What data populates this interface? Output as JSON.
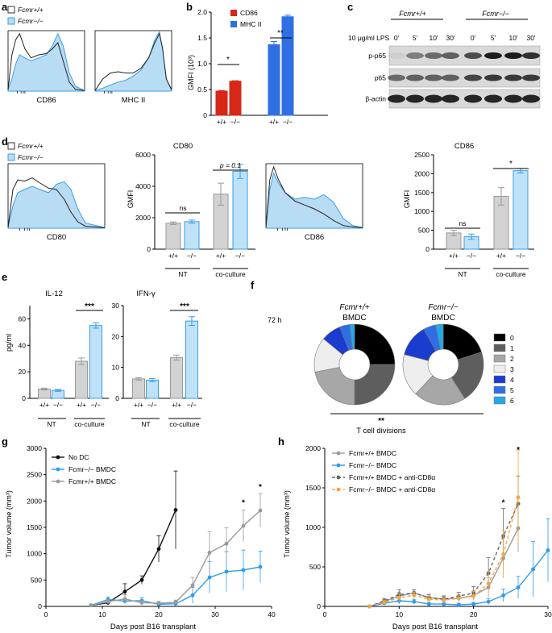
{
  "colors": {
    "wt_line": "#222222",
    "ko_line": "#3a9ee6",
    "ko_fill": "#b9dcf5",
    "red": "#d62718",
    "blue": "#2f6fe3",
    "grey_bar": "#d2d2d2",
    "ko_bar": "#bfe2f9",
    "orange": "#f4a640",
    "dark_grey": "#666666"
  },
  "panels": {
    "a": {
      "letter": "a",
      "legend_wt": "Fcmr+/+",
      "legend_ko": "Fcmr−/−",
      "hist1_label": "CD86",
      "hist2_label": "MHC II"
    },
    "b": {
      "letter": "b",
      "ylabel": "GMFI (10³)",
      "legend": [
        "CD86",
        "MHC II"
      ],
      "sig": [
        "*",
        "**"
      ],
      "xt": [
        "+/+",
        "−/−",
        "+/+",
        "−/−"
      ],
      "yticks": [
        "0",
        "0.5",
        "1.0",
        "1.5",
        "2.0"
      ]
    },
    "c": {
      "letter": "c",
      "wt": "Fcmr+/+",
      "ko": "Fcmr−/−",
      "lps": "10 μg/ml LPS",
      "times": [
        "0′",
        "5′",
        "10′",
        "30′",
        "0′",
        "5′",
        "10′",
        "30′"
      ],
      "rows": [
        "p-p65",
        "p65",
        "β-actin"
      ]
    },
    "d": {
      "letter": "d",
      "legend_wt": "Fcmr+/+",
      "legend_ko": "Fcmr−/−",
      "hist1_label": "CD80",
      "hist2_label": "CD86",
      "cd80": {
        "title": "CD80",
        "ylabel": "GMFI",
        "sig": [
          "ns",
          "p = 0.1"
        ],
        "yticks": [
          "0",
          "2000",
          "4000",
          "6000"
        ]
      },
      "cd86": {
        "title": "CD86",
        "ylabel": "GMFI",
        "sig": [
          "ns",
          "*"
        ],
        "yticks": [
          "0",
          "500",
          "1000",
          "1500",
          "2000",
          "2500"
        ]
      },
      "xt": [
        "+/+",
        "−/−",
        "+/+",
        "−/−"
      ],
      "groups": [
        "NT",
        "co-culture"
      ]
    },
    "e": {
      "letter": "e",
      "ylabel": "pg/ml",
      "il12": {
        "title": "IL-12",
        "sig": "***",
        "yticks": [
          "0",
          "20",
          "40",
          "60"
        ]
      },
      "ifng": {
        "title": "IFN-γ",
        "sig": "***",
        "yticks": [
          "0",
          "10",
          "20",
          "30"
        ]
      },
      "xt": [
        "+/+",
        "−/−",
        "+/+",
        "−/−"
      ],
      "groups": [
        "NT",
        "co-culture"
      ]
    },
    "f": {
      "letter": "f",
      "time": "72 h",
      "wt": "Fcmr+/+",
      "ko": "Fcmr−/−",
      "bmdc": "BMDC",
      "legend": [
        "0",
        "1",
        "2",
        "3",
        "4",
        "5",
        "6"
      ],
      "sig": "**",
      "xlabel": "T cell divisions"
    },
    "g": {
      "letter": "g",
      "ylabel": "Tumor volume (mm³)",
      "xlabel": "Days post B16 transplant",
      "legend": [
        "No DC",
        "Fcmr−/− BMDC",
        "Fcmr+/+ BMDC"
      ],
      "sig": [
        "*",
        "*"
      ],
      "xticks": [
        "0",
        "10",
        "20",
        "30",
        "40"
      ],
      "yticks": [
        "0",
        "500",
        "1000",
        "1500",
        "2000",
        "2500",
        "3000"
      ]
    },
    "h": {
      "letter": "h",
      "ylabel": "Tumor volume (mm³)",
      "xlabel": "Days post B16 transplant",
      "legend": [
        "Fcmr+/+ BMDC",
        "Fcmr−/− BMDC",
        "Fcmr+/+ BMDC + anti-CD8α",
        "Fcmr−/− BMDC + anti-CD8α"
      ],
      "sig": [
        "*",
        "*"
      ],
      "xticks": [
        "0",
        "10",
        "20",
        "30"
      ],
      "yticks": [
        "0",
        "500",
        "1000",
        "1500",
        "2000"
      ]
    }
  },
  "chart_data": [
    {
      "panel": "b",
      "type": "bar",
      "title": "",
      "ylabel": "GMFI (10³)",
      "ylim": [
        0,
        2.0
      ],
      "categories": [
        "CD86 +/+",
        "CD86 −/−",
        "MHC II +/+",
        "MHC II −/−"
      ],
      "values": [
        0.47,
        0.66,
        1.37,
        1.91
      ],
      "errors": [
        0.01,
        0.01,
        0.06,
        0.03
      ]
    },
    {
      "panel": "d",
      "type": "bar",
      "title": "CD80",
      "ylabel": "GMFI",
      "ylim": [
        0,
        6000
      ],
      "categories": [
        "NT +/+",
        "NT −/−",
        "co-culture +/+",
        "co-culture −/−"
      ],
      "values": [
        1650,
        1750,
        3500,
        4950
      ],
      "errors": [
        80,
        100,
        700,
        450
      ]
    },
    {
      "panel": "d",
      "type": "bar",
      "title": "CD86",
      "ylabel": "GMFI",
      "ylim": [
        0,
        2500
      ],
      "categories": [
        "NT +/+",
        "NT −/−",
        "co-culture +/+",
        "co-culture −/−"
      ],
      "values": [
        430,
        330,
        1400,
        2080
      ],
      "errors": [
        70,
        70,
        230,
        60
      ]
    },
    {
      "panel": "e",
      "type": "bar",
      "title": "IL-12",
      "ylabel": "pg/ml",
      "ylim": [
        0,
        70
      ],
      "categories": [
        "NT +/+",
        "NT −/−",
        "co-culture +/+",
        "co-culture −/−"
      ],
      "values": [
        7,
        6,
        28,
        55
      ],
      "errors": [
        0.7,
        0.7,
        2.5,
        2
      ]
    },
    {
      "panel": "e",
      "type": "bar",
      "title": "IFN-γ",
      "ylabel": "pg/ml",
      "ylim": [
        0,
        30
      ],
      "categories": [
        "NT +/+",
        "NT −/−",
        "co-culture +/+",
        "co-culture −/−"
      ],
      "values": [
        6.3,
        5.9,
        13.2,
        25
      ],
      "errors": [
        0.4,
        0.5,
        0.8,
        1.4
      ]
    },
    {
      "panel": "f",
      "type": "pie",
      "title": "T cell divisions",
      "series": [
        {
          "name": "Fcmr+/+ BMDC",
          "values": [
            25,
            25,
            22,
            14,
            8,
            4,
            2
          ]
        },
        {
          "name": "Fcmr−/− BMDC",
          "values": [
            20,
            21,
            21,
            17,
            13,
            5,
            3
          ]
        }
      ],
      "categories": [
        "0",
        "1",
        "2",
        "3",
        "4",
        "5",
        "6"
      ]
    },
    {
      "panel": "g",
      "type": "line",
      "xlabel": "Days post B16 transplant",
      "ylabel": "Tumor volume (mm³)",
      "xlim": [
        0,
        40
      ],
      "ylim": [
        0,
        3000
      ],
      "series": [
        {
          "name": "No DC",
          "x": [
            8,
            11,
            14,
            17,
            20,
            23
          ],
          "y": [
            20,
            70,
            280,
            500,
            1090,
            1830
          ],
          "err": [
            10,
            40,
            150,
            80,
            250,
            740
          ]
        },
        {
          "name": "Fcmr−/− BMDC",
          "x": [
            8,
            11,
            14,
            17,
            20,
            23,
            26,
            29,
            32,
            35,
            38
          ],
          "y": [
            20,
            130,
            100,
            110,
            40,
            50,
            210,
            550,
            660,
            690,
            750
          ],
          "err": [
            10,
            50,
            50,
            60,
            30,
            40,
            150,
            300,
            380,
            380,
            300
          ]
        },
        {
          "name": "Fcmr+/+ BMDC",
          "x": [
            8,
            11,
            14,
            17,
            20,
            23,
            26,
            29,
            32,
            35,
            38
          ],
          "y": [
            20,
            90,
            140,
            70,
            60,
            80,
            400,
            1020,
            1190,
            1530,
            1820
          ],
          "err": [
            10,
            40,
            80,
            50,
            40,
            40,
            150,
            400,
            300,
            300,
            320
          ]
        }
      ]
    },
    {
      "panel": "h",
      "type": "line",
      "xlabel": "Days post B16 transplant",
      "ylabel": "Tumor volume (mm³)",
      "xlim": [
        0,
        30
      ],
      "ylim": [
        0,
        2000
      ],
      "series": [
        {
          "name": "Fcmr+/+ BMDC",
          "x": [
            6,
            8,
            10,
            12,
            14,
            16,
            18,
            20,
            22,
            24,
            26
          ],
          "y": [
            0,
            60,
            130,
            170,
            110,
            95,
            100,
            140,
            240,
            610,
            990
          ],
          "err": [
            0,
            30,
            50,
            40,
            40,
            40,
            40,
            60,
            120,
            250,
            300
          ]
        },
        {
          "name": "Fcmr−/− BMDC",
          "x": [
            6,
            8,
            10,
            12,
            14,
            16,
            18,
            20,
            22,
            24,
            26,
            28,
            30
          ],
          "y": [
            0,
            40,
            70,
            60,
            30,
            30,
            20,
            30,
            60,
            140,
            240,
            470,
            710
          ],
          "err": [
            0,
            20,
            40,
            30,
            20,
            20,
            20,
            20,
            40,
            80,
            140,
            350,
            400
          ]
        },
        {
          "name": "Fcmr+/+ BMDC + anti-CD8α",
          "x": [
            6,
            8,
            10,
            12,
            14,
            16,
            18,
            20,
            22,
            24,
            26
          ],
          "y": [
            0,
            70,
            150,
            170,
            110,
            90,
            130,
            170,
            420,
            890,
            1300
          ],
          "err": [
            0,
            30,
            60,
            40,
            40,
            40,
            50,
            80,
            200,
            350,
            350
          ]
        },
        {
          "name": "Fcmr−/− BMDC + anti-CD8α",
          "x": [
            6,
            8,
            10,
            12,
            14,
            16,
            18,
            20,
            22,
            24,
            26
          ],
          "y": [
            0,
            50,
            110,
            140,
            90,
            80,
            100,
            130,
            290,
            660,
            1380
          ],
          "err": [
            0,
            30,
            50,
            40,
            40,
            40,
            40,
            60,
            150,
            300,
            600
          ]
        }
      ]
    }
  ]
}
